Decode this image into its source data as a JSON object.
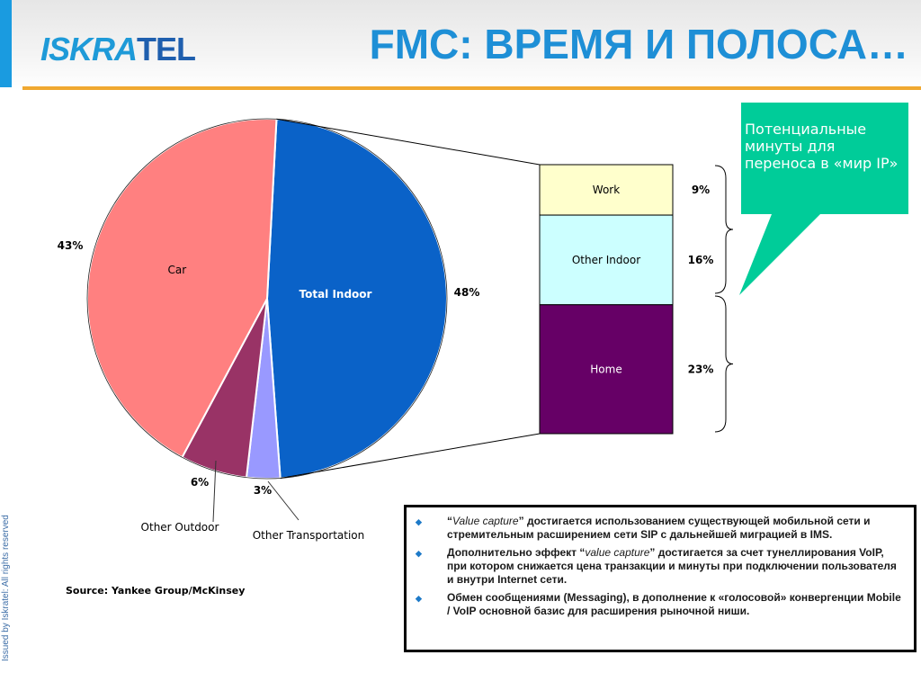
{
  "header": {
    "logo_part1": "ISKRA",
    "logo_part2": "TEL",
    "title": "FMC: ВРЕМЯ И ПОЛОСА…"
  },
  "colors": {
    "accent_blue": "#1a9be0",
    "rule_orange": "#f0a830",
    "callout_green": "#00cc99"
  },
  "side_note": "Issued by Iskratel: All rights reserved",
  "chart_data": [
    {
      "type": "pie",
      "slices": [
        {
          "label": "Total Indoor",
          "value": 48,
          "value_label": "48%",
          "color": "#0a62c8"
        },
        {
          "label": "Other Transportation",
          "value": 3,
          "value_label": "3%",
          "color": "#9999ff"
        },
        {
          "label": "Other Outdoor",
          "value": 6,
          "value_label": "6%",
          "color": "#993366"
        },
        {
          "label": "Car",
          "value": 43,
          "value_label": "43%",
          "color": "#ff8080"
        }
      ]
    },
    {
      "type": "bar",
      "stacked": true,
      "segments": [
        {
          "label": "Work",
          "value": 9,
          "value_label": "9%",
          "color": "#ffffcc"
        },
        {
          "label": "Other Indoor",
          "value": 16,
          "value_label": "16%",
          "color": "#ccffff"
        },
        {
          "label": "Home",
          "value": 23,
          "value_label": "23%",
          "color": "#660066"
        }
      ]
    }
  ],
  "callout": {
    "text": "Потенциальные минуты для переноса в «мир IP»"
  },
  "source": "Source: Yankee Group/McKinsey",
  "notes": [
    {
      "q1": "“",
      "em1": "Value capture",
      "q2": "” ",
      "rest": "достигается использованием существующей мобильной сети и стремительным расширением сети SIP с дальнейшей миграцией в IMS."
    },
    {
      "pre": "Дополнительно эффект “",
      "em": "value capture",
      "rest": "” достигается за счет тунеллирования VoIP, при котором снижается цена транзакции и минуты при подключении  пользователя и внутри Internet сети."
    },
    {
      "text": "Обмен сообщениями (Messaging), в дополнение к «голосовой» конвергенции  Mobile / VoIP основной базис для расширения рыночной ниши."
    }
  ]
}
